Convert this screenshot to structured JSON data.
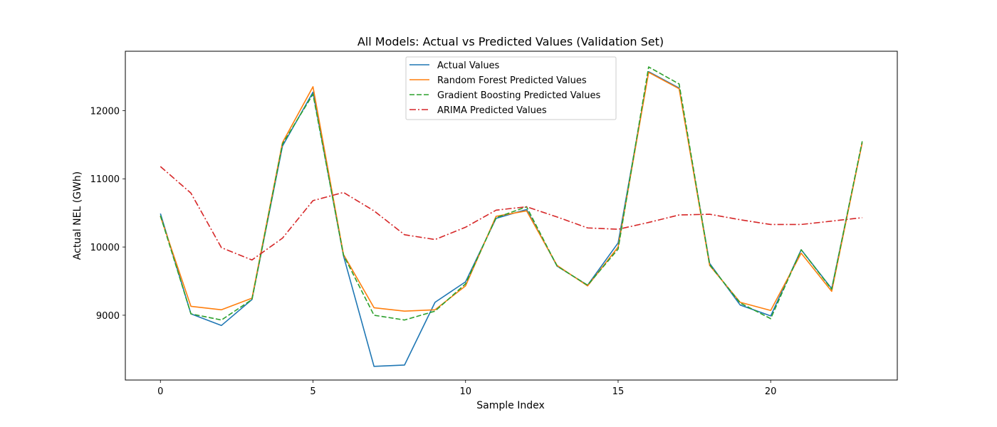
{
  "chart_data": {
    "type": "line",
    "title": "All Models: Actual vs Predicted Values (Validation Set)",
    "xlabel": "Sample Index",
    "ylabel": "Actual NEL (GWh)",
    "xlim": [
      -1.15,
      24.15
    ],
    "ylim": [
      8050,
      12870
    ],
    "xticks": [
      0,
      5,
      10,
      15,
      20
    ],
    "yticks": [
      9000,
      10000,
      11000,
      12000
    ],
    "grid": false,
    "legend_position": "upper center",
    "x": [
      0,
      1,
      2,
      3,
      4,
      5,
      6,
      7,
      8,
      9,
      10,
      11,
      12,
      13,
      14,
      15,
      16,
      17,
      18,
      19,
      20,
      21,
      22,
      23
    ],
    "series": [
      {
        "name": "Actual Values",
        "color": "#1f77b4",
        "dash": "solid",
        "values": [
          10490,
          9020,
          8850,
          9230,
          11480,
          12270,
          9870,
          8250,
          8270,
          9190,
          9490,
          10420,
          10550,
          9720,
          9440,
          10060,
          12570,
          12330,
          9760,
          9150,
          8990,
          9960,
          9390,
          11530
        ]
      },
      {
        "name": "Random Forest Predicted Values",
        "color": "#ff7f0e",
        "dash": "solid",
        "values": [
          10450,
          9130,
          9080,
          9250,
          11530,
          12350,
          9890,
          9110,
          9060,
          9080,
          9430,
          10450,
          10530,
          9730,
          9430,
          10000,
          12560,
          12320,
          9730,
          9190,
          9070,
          9910,
          9350,
          11530
        ]
      },
      {
        "name": "Gradient Boosting Predicted Values",
        "color": "#2ca02c",
        "dash": "dashed",
        "values": [
          10460,
          9020,
          8930,
          9230,
          11510,
          12240,
          9880,
          9000,
          8930,
          9060,
          9460,
          10430,
          10590,
          9720,
          9440,
          9970,
          12640,
          12390,
          9740,
          9180,
          8950,
          9960,
          9380,
          11550
        ]
      },
      {
        "name": "ARIMA Predicted Values",
        "color": "#d62728",
        "dash": "dashdot",
        "values": [
          11180,
          10790,
          9990,
          9810,
          10130,
          10680,
          10800,
          10530,
          10180,
          10110,
          10290,
          10540,
          10590,
          10440,
          10280,
          10260,
          10360,
          10470,
          10480,
          10400,
          10330,
          10330,
          10380,
          10430
        ]
      }
    ]
  }
}
